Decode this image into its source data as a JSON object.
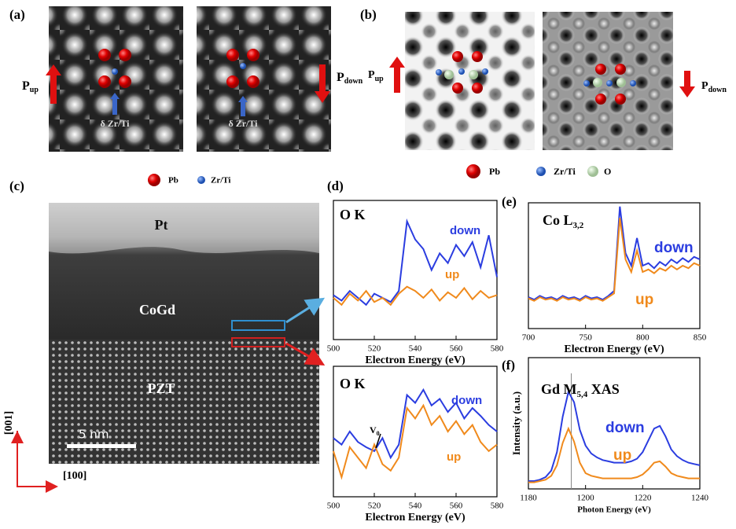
{
  "figure": {
    "panel_a": {
      "label": "(a)",
      "p_up": {
        "symbol": "P",
        "subscript": "up"
      },
      "p_down": {
        "symbol": "P",
        "subscript": "down"
      },
      "displacement_labels": [
        "δ Zr/Ti",
        "δ Zr/Ti"
      ]
    },
    "panel_b": {
      "label": "(b)",
      "p_up": {
        "symbol": "P",
        "subscript": "up"
      },
      "p_down": {
        "symbol": "P",
        "subscript": "down"
      },
      "legend": [
        "Pb",
        "Zr/Ti",
        "O"
      ]
    },
    "panel_c": {
      "label": "(c)",
      "legend": [
        "Pb",
        "Zr/Ti"
      ],
      "layers": [
        "Pt",
        "CoGd",
        "PZT"
      ],
      "scale_bar": "5 nm",
      "axes": [
        "[001]",
        "[100]"
      ]
    },
    "panel_d": {
      "label": "(d)"
    },
    "panel_e": {
      "label": "(e)"
    },
    "panel_f": {
      "label": "(f)"
    }
  },
  "chart_data": [
    {
      "type": "line",
      "title": [
        "O K"
      ],
      "xlabel": "Electron Energy (eV)",
      "x": [
        500,
        504,
        508,
        512,
        516,
        520,
        524,
        528,
        532,
        536,
        540,
        544,
        548,
        552,
        556,
        560,
        564,
        568,
        572,
        576,
        580
      ],
      "xlim": [
        500,
        580
      ],
      "xticks": [
        500,
        520,
        540,
        560,
        580
      ],
      "ylim": [
        0,
        1
      ],
      "series": [
        {
          "name": "down",
          "color": "#2b3de0",
          "values": [
            0.32,
            0.28,
            0.35,
            0.3,
            0.25,
            0.33,
            0.3,
            0.27,
            0.35,
            0.85,
            0.72,
            0.65,
            0.5,
            0.62,
            0.55,
            0.68,
            0.6,
            0.7,
            0.52,
            0.75,
            0.45
          ]
        },
        {
          "name": "up",
          "color": "#f08a1c",
          "values": [
            0.3,
            0.25,
            0.33,
            0.28,
            0.35,
            0.27,
            0.3,
            0.25,
            0.33,
            0.38,
            0.35,
            0.3,
            0.36,
            0.28,
            0.34,
            0.3,
            0.37,
            0.29,
            0.35,
            0.3,
            0.32
          ]
        }
      ]
    },
    {
      "type": "line",
      "title": [
        "O K"
      ],
      "xlabel": "Electron Energy (eV)",
      "annotation": {
        "symbol": "V",
        "subscript": "0"
      },
      "x": [
        500,
        504,
        508,
        512,
        516,
        520,
        524,
        528,
        532,
        536,
        540,
        544,
        548,
        552,
        556,
        560,
        564,
        568,
        572,
        576,
        580
      ],
      "xlim": [
        500,
        580
      ],
      "xticks": [
        500,
        520,
        540,
        560,
        580
      ],
      "ylim": [
        0,
        1
      ],
      "series": [
        {
          "name": "down",
          "color": "#2b3de0",
          "values": [
            0.45,
            0.4,
            0.5,
            0.42,
            0.38,
            0.35,
            0.45,
            0.3,
            0.4,
            0.78,
            0.72,
            0.82,
            0.7,
            0.75,
            0.65,
            0.72,
            0.6,
            0.68,
            0.62,
            0.55,
            0.5
          ]
        },
        {
          "name": "up",
          "color": "#f08a1c",
          "values": [
            0.35,
            0.15,
            0.38,
            0.3,
            0.22,
            0.4,
            0.25,
            0.2,
            0.3,
            0.68,
            0.6,
            0.7,
            0.55,
            0.62,
            0.5,
            0.58,
            0.48,
            0.55,
            0.42,
            0.35,
            0.4
          ]
        }
      ]
    },
    {
      "type": "line",
      "title": [
        "Co L",
        "3,2"
      ],
      "xlabel": "Electron Energy (eV)",
      "x": [
        700,
        705,
        710,
        715,
        720,
        725,
        730,
        735,
        740,
        745,
        750,
        755,
        760,
        765,
        770,
        775,
        780,
        785,
        790,
        795,
        800,
        805,
        810,
        815,
        820,
        825,
        830,
        835,
        840,
        845,
        850
      ],
      "xlim": [
        700,
        850
      ],
      "xticks": [
        700,
        750,
        800,
        850
      ],
      "ylim": [
        0,
        1
      ],
      "series": [
        {
          "name": "down",
          "color": "#2b3de0",
          "values": [
            0.25,
            0.23,
            0.26,
            0.24,
            0.25,
            0.23,
            0.26,
            0.24,
            0.25,
            0.23,
            0.26,
            0.24,
            0.25,
            0.23,
            0.26,
            0.3,
            0.97,
            0.6,
            0.5,
            0.72,
            0.5,
            0.52,
            0.48,
            0.53,
            0.5,
            0.55,
            0.52,
            0.56,
            0.53,
            0.57,
            0.55
          ]
        },
        {
          "name": "up",
          "color": "#f08a1c",
          "values": [
            0.24,
            0.22,
            0.25,
            0.23,
            0.24,
            0.22,
            0.25,
            0.23,
            0.24,
            0.22,
            0.25,
            0.23,
            0.24,
            0.22,
            0.25,
            0.28,
            0.88,
            0.55,
            0.45,
            0.62,
            0.45,
            0.47,
            0.44,
            0.48,
            0.46,
            0.5,
            0.47,
            0.5,
            0.48,
            0.52,
            0.5
          ]
        }
      ]
    },
    {
      "type": "line",
      "title": [
        "Gd M",
        "5,4",
        " XAS"
      ],
      "xlabel": "Photon Energy (eV)",
      "ylabel": "Intensity (a.u.)",
      "x": [
        1180,
        1182,
        1184,
        1186,
        1188,
        1190,
        1192,
        1194,
        1196,
        1198,
        1200,
        1202,
        1204,
        1206,
        1208,
        1210,
        1212,
        1214,
        1216,
        1218,
        1220,
        1222,
        1224,
        1226,
        1228,
        1230,
        1232,
        1234,
        1236,
        1238,
        1240
      ],
      "xlim": [
        1180,
        1240
      ],
      "xticks": [
        1180,
        1200,
        1220,
        1240
      ],
      "ylim": [
        0,
        1
      ],
      "series": [
        {
          "name": "down",
          "color": "#2b3de0",
          "values": [
            0.06,
            0.06,
            0.07,
            0.09,
            0.14,
            0.28,
            0.55,
            0.74,
            0.66,
            0.45,
            0.33,
            0.27,
            0.24,
            0.22,
            0.21,
            0.2,
            0.2,
            0.2,
            0.21,
            0.23,
            0.28,
            0.37,
            0.46,
            0.48,
            0.4,
            0.3,
            0.25,
            0.22,
            0.2,
            0.19,
            0.18
          ]
        },
        {
          "name": "up",
          "color": "#f08a1c",
          "values": [
            0.05,
            0.05,
            0.06,
            0.07,
            0.1,
            0.18,
            0.35,
            0.46,
            0.36,
            0.2,
            0.12,
            0.1,
            0.09,
            0.08,
            0.08,
            0.08,
            0.08,
            0.08,
            0.08,
            0.09,
            0.11,
            0.15,
            0.2,
            0.21,
            0.17,
            0.12,
            0.1,
            0.09,
            0.08,
            0.08,
            0.08
          ]
        }
      ]
    }
  ]
}
